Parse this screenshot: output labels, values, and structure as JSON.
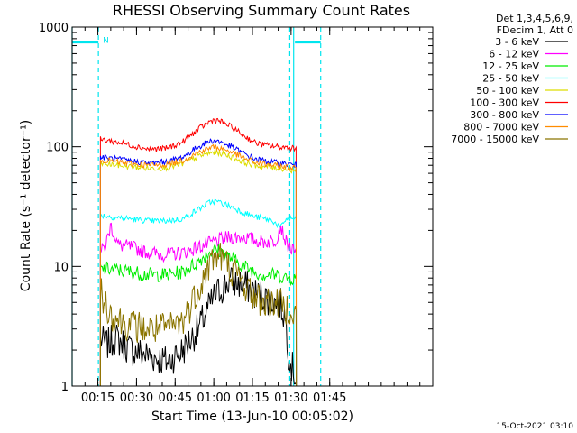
{
  "chart_data": {
    "type": "line",
    "title": "RHESSI Observing Summary Count Rates",
    "xlabel": "Start Time (13-Jun-10 00:05:02)",
    "ylabel": "Count Rate (s⁻¹ detector⁻¹)",
    "yscale": "log",
    "xlim": [
      5,
      145
    ],
    "ylim": [
      1,
      1000
    ],
    "xticks": [
      {
        "v": 15,
        "label": "00:15"
      },
      {
        "v": 30,
        "label": "00:30"
      },
      {
        "v": 45,
        "label": "00:45"
      },
      {
        "v": 60,
        "label": "01:00"
      },
      {
        "v": 75,
        "label": "01:15"
      },
      {
        "v": 90,
        "label": "01:30"
      },
      {
        "v": 105,
        "label": "01:45"
      }
    ],
    "yticks": [
      {
        "v": 1,
        "label": "1"
      },
      {
        "v": 10,
        "label": "10"
      },
      {
        "v": 100,
        "label": "100"
      },
      {
        "v": 1000,
        "label": "1000"
      }
    ],
    "legend_header": [
      "Det 1,3,4,5,6,9,",
      "FDecim 1, Att 0"
    ],
    "legend_position": "right",
    "timestamp": "15-Oct-2021 03:10",
    "flag_label": "N",
    "markers": {
      "solid_cyan_lines": [
        5,
        91
      ],
      "dashed_cyan_lines": [
        15.2,
        89.5,
        101.5
      ],
      "flag_bar_y": 750,
      "flag_bar_segments": [
        [
          5,
          15.2
        ],
        [
          91.5,
          101.5
        ]
      ]
    },
    "series": [
      {
        "name": "3 - 6 keV",
        "color": "#000000",
        "x": [
          16,
          18,
          22,
          28,
          35,
          42,
          48,
          54,
          58,
          60,
          62,
          66,
          72,
          76,
          80,
          86,
          88,
          89,
          90,
          92
        ],
        "y": [
          2.5,
          2.2,
          2.5,
          2.0,
          1.8,
          1.6,
          2.0,
          3.0,
          4.5,
          5.5,
          6.2,
          7.5,
          7.0,
          6.0,
          5.5,
          4.8,
          3.5,
          2.0,
          1.5,
          1.2
        ]
      },
      {
        "name": "6 - 12 keV",
        "color": "#ff00ff",
        "x": [
          16,
          18,
          20,
          23,
          28,
          35,
          42,
          48,
          54,
          58,
          60,
          62,
          66,
          72,
          76,
          80,
          84,
          86,
          88,
          90,
          92
        ],
        "y": [
          13.0,
          15.0,
          22.0,
          15.0,
          14.5,
          13.0,
          12.5,
          13.0,
          14.5,
          15.5,
          16.0,
          16.5,
          17.5,
          17.5,
          16.5,
          16.0,
          16.5,
          22.0,
          16.0,
          14.0,
          12.5
        ]
      },
      {
        "name": "12 - 25 keV",
        "color": "#00ee00",
        "x": [
          16,
          20,
          28,
          35,
          42,
          48,
          54,
          58,
          60,
          62,
          66,
          72,
          76,
          80,
          85,
          88,
          90,
          92
        ],
        "y": [
          9.5,
          9.5,
          9.0,
          8.5,
          8.5,
          9.0,
          11.0,
          13.0,
          13.8,
          13.5,
          12.0,
          10.0,
          9.0,
          8.5,
          8.5,
          8.0,
          8.0,
          8.0
        ]
      },
      {
        "name": "25 - 50 keV",
        "color": "#00ffff",
        "x": [
          16,
          20,
          28,
          35,
          42,
          48,
          54,
          58,
          60,
          62,
          66,
          72,
          76,
          80,
          83,
          86,
          88,
          90,
          92
        ],
        "y": [
          27,
          26,
          25,
          24,
          24,
          25,
          30,
          34,
          35,
          34.5,
          32,
          28,
          26,
          25,
          24,
          21,
          25,
          25,
          25
        ]
      },
      {
        "name": "50 - 100 keV",
        "color": "#dddd00",
        "x": [
          16,
          20,
          28,
          35,
          42,
          48,
          54,
          58,
          60,
          62,
          66,
          72,
          76,
          80,
          85,
          88,
          90,
          92
        ],
        "y": [
          72,
          71,
          68,
          66,
          67,
          72,
          83,
          88,
          90,
          89,
          84,
          74,
          70,
          68,
          66,
          65,
          64,
          64
        ]
      },
      {
        "name": "100 - 300 keV",
        "color": "#ff0000",
        "x": [
          16,
          20,
          28,
          35,
          42,
          48,
          54,
          58,
          60,
          62,
          66,
          72,
          76,
          80,
          85,
          88,
          90,
          92
        ],
        "y": [
          115,
          112,
          103,
          95,
          97,
          110,
          140,
          160,
          168,
          165,
          150,
          123,
          108,
          103,
          100,
          99,
          98,
          98
        ]
      },
      {
        "name": "300 - 800 keV",
        "color": "#0000ff",
        "x": [
          16,
          20,
          28,
          35,
          42,
          48,
          54,
          58,
          60,
          62,
          66,
          72,
          76,
          80,
          85,
          88,
          90,
          92
        ],
        "y": [
          82,
          80,
          76,
          73,
          75,
          82,
          100,
          110,
          113,
          111,
          102,
          87,
          79,
          76,
          73,
          72,
          71,
          70
        ]
      },
      {
        "name": "800 - 7000 keV",
        "color": "#ff8c00",
        "x": [
          16,
          20,
          28,
          35,
          42,
          48,
          54,
          58,
          60,
          62,
          66,
          72,
          76,
          80,
          85,
          88,
          90,
          92
        ],
        "y": [
          78,
          76,
          72,
          70,
          71,
          77,
          90,
          97,
          100,
          98,
          92,
          80,
          74,
          71,
          69,
          68,
          67,
          67
        ]
      },
      {
        "name": "7000 - 15000 keV",
        "color": "#8b7500",
        "x": [
          16,
          18,
          20,
          24,
          28,
          35,
          42,
          48,
          54,
          58,
          60,
          62,
          66,
          72,
          76,
          80,
          84,
          88,
          90,
          92
        ],
        "y": [
          6.0,
          5.0,
          4.0,
          3.5,
          3.2,
          3.0,
          3.0,
          3.5,
          6.5,
          10.0,
          12.0,
          12.5,
          10.0,
          7.0,
          5.5,
          5.0,
          5.0,
          4.5,
          4.5,
          4.0
        ]
      }
    ]
  }
}
